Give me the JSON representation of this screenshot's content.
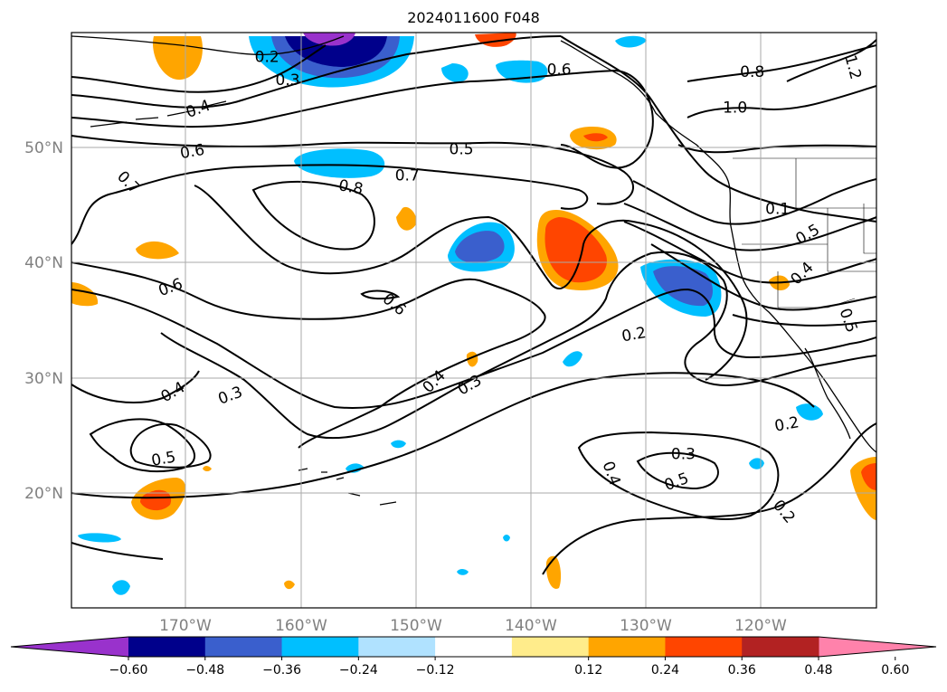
{
  "title": "2024011600 F048",
  "map": {
    "lon_range": [
      -180,
      -110
    ],
    "lat_range": [
      10,
      60
    ],
    "lon_ticks": [
      "170°W",
      "160°W",
      "150°W",
      "140°W",
      "130°W",
      "120°W"
    ],
    "lat_ticks": [
      "50°N",
      "40°N",
      "30°N",
      "20°N"
    ],
    "grid": true,
    "contour_labels": [
      {
        "text": "0.2",
        "lon": -163.0,
        "lat": 57.9,
        "angle": 0
      },
      {
        "text": "0.3",
        "lon": -161.2,
        "lat": 55.9,
        "angle": 0
      },
      {
        "text": "0.4",
        "lon": -169.0,
        "lat": 53.4,
        "angle": 20
      },
      {
        "text": "0.6",
        "lon": -137.6,
        "lat": 56.8,
        "angle": 0
      },
      {
        "text": "0.8",
        "lon": -120.8,
        "lat": 56.6,
        "angle": 0
      },
      {
        "text": "1.0",
        "lon": -122.3,
        "lat": 53.5,
        "angle": 0
      },
      {
        "text": "1.2",
        "lon": -112.0,
        "lat": 57.0,
        "angle": -75
      },
      {
        "text": "0.6",
        "lon": -169.5,
        "lat": 49.7,
        "angle": 10
      },
      {
        "text": "0.5",
        "lon": -146.1,
        "lat": 49.9,
        "angle": 0
      },
      {
        "text": "0.7",
        "lon": -150.8,
        "lat": 47.6,
        "angle": 0
      },
      {
        "text": "0.8",
        "lon": -155.7,
        "lat": 46.6,
        "angle": -10
      },
      {
        "text": "0.7",
        "lon": -175.0,
        "lat": 47.0,
        "angle": -45
      },
      {
        "text": "0.1",
        "lon": -118.6,
        "lat": 44.7,
        "angle": 0
      },
      {
        "text": "0.5",
        "lon": -116.0,
        "lat": 42.5,
        "angle": 30
      },
      {
        "text": "0.4",
        "lon": -116.5,
        "lat": 39.1,
        "angle": 45
      },
      {
        "text": "0.6",
        "lon": -171.4,
        "lat": 37.9,
        "angle": 20
      },
      {
        "text": "0.6",
        "lon": -151.9,
        "lat": 36.4,
        "angle": -40
      },
      {
        "text": "0.5",
        "lon": -112.4,
        "lat": 35.0,
        "angle": -70
      },
      {
        "text": "0.2",
        "lon": -131.1,
        "lat": 33.8,
        "angle": 10
      },
      {
        "text": "0.4",
        "lon": -148.5,
        "lat": 29.7,
        "angle": 45
      },
      {
        "text": "0.3",
        "lon": -145.4,
        "lat": 29.4,
        "angle": 30
      },
      {
        "text": "0.4",
        "lon": -171.2,
        "lat": 28.8,
        "angle": 30
      },
      {
        "text": "0.3",
        "lon": -166.2,
        "lat": 28.5,
        "angle": 20
      },
      {
        "text": "0.2",
        "lon": -117.8,
        "lat": 26.0,
        "angle": 10
      },
      {
        "text": "0.5",
        "lon": -172.0,
        "lat": 23.0,
        "angle": 10
      },
      {
        "text": "0.3",
        "lon": -126.8,
        "lat": 23.4,
        "angle": 0
      },
      {
        "text": "0.4",
        "lon": -133.0,
        "lat": 21.7,
        "angle": -70
      },
      {
        "text": "0.5",
        "lon": -127.4,
        "lat": 21.0,
        "angle": 20
      },
      {
        "text": "0.2",
        "lon": -118.0,
        "lat": 18.4,
        "angle": -50
      }
    ]
  },
  "colorbar": {
    "ticks": [
      "−0.60",
      "−0.48",
      "−0.36",
      "−0.24",
      "−0.12",
      "0.12",
      "0.24",
      "0.36",
      "0.48",
      "0.60"
    ],
    "colors": [
      "#9932cc",
      "#00008b",
      "#3a5fcd",
      "#00bfff",
      "#b0e2ff",
      "#ffffff",
      "#ffec8b",
      "#ffa500",
      "#ff4500",
      "#b22222",
      "#ff82ab"
    ]
  }
}
